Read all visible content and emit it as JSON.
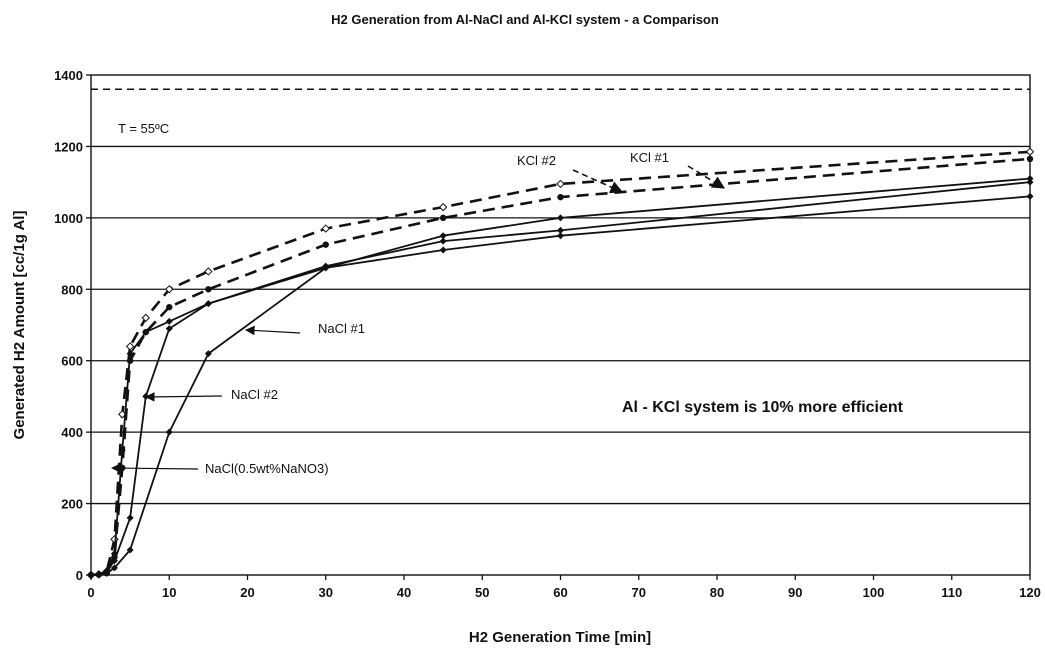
{
  "chart_data": {
    "type": "line",
    "title": "H2 Generation from Al-NaCl and Al-KCl system - a Comparison",
    "xlabel": "H2 Generation Time [min]",
    "ylabel": "Generated H2 Amount [cc/1g Al]",
    "xlim": [
      0,
      120
    ],
    "ylim": [
      0,
      1400
    ],
    "xticks": [
      0,
      10,
      20,
      30,
      40,
      50,
      60,
      70,
      80,
      90,
      100,
      110,
      120
    ],
    "yticks": [
      0,
      200,
      400,
      600,
      800,
      1000,
      1200,
      1400
    ],
    "grid": "horizontal",
    "reference_line": {
      "y": 1360,
      "style": "dashed"
    },
    "series": [
      {
        "name": "KCl #1",
        "style": "dashed",
        "marker": "open-diamond",
        "x": [
          0,
          1,
          2,
          3,
          4,
          5,
          7,
          10,
          15,
          30,
          45,
          60,
          120
        ],
        "y": [
          0,
          2,
          10,
          100,
          450,
          640,
          720,
          800,
          850,
          970,
          1030,
          1095,
          1185
        ]
      },
      {
        "name": "KCl #2",
        "style": "dashed",
        "marker": "filled-circle",
        "x": [
          0,
          1,
          2,
          3,
          4,
          5,
          7,
          10,
          15,
          30,
          45,
          60,
          120
        ],
        "y": [
          0,
          1,
          5,
          50,
          300,
          600,
          680,
          750,
          800,
          925,
          1000,
          1058,
          1165
        ]
      },
      {
        "name": "NaCl #1",
        "style": "solid",
        "marker": "filled-diamond",
        "x": [
          0,
          1,
          2,
          3,
          5,
          10,
          15,
          30,
          45,
          60,
          120
        ],
        "y": [
          0,
          0,
          5,
          20,
          70,
          400,
          620,
          860,
          950,
          1000,
          1110
        ]
      },
      {
        "name": "NaCl #2",
        "style": "solid",
        "marker": "filled-diamond",
        "x": [
          0,
          1,
          2,
          3,
          5,
          7,
          10,
          15,
          30,
          45,
          60,
          120
        ],
        "y": [
          0,
          0,
          10,
          40,
          160,
          500,
          690,
          760,
          865,
          935,
          965,
          1100
        ]
      },
      {
        "name": "NaCl(0.5wt%NaNO3)",
        "style": "solid",
        "marker": "filled-diamond",
        "x": [
          0,
          1,
          2,
          3,
          4,
          5,
          7,
          10,
          15,
          30,
          45,
          60,
          120
        ],
        "y": [
          0,
          0,
          10,
          60,
          350,
          620,
          680,
          710,
          760,
          860,
          910,
          950,
          1060
        ]
      }
    ],
    "annotations": [
      {
        "text": "T = 55ºC"
      },
      {
        "text": "KCl #1"
      },
      {
        "text": "KCl #2"
      },
      {
        "text": "NaCl #1"
      },
      {
        "text": "NaCl #2"
      },
      {
        "text": "NaCl(0.5wt%NaNO3)"
      },
      {
        "text": "Al - KCl system is 10% more efficient"
      }
    ]
  }
}
